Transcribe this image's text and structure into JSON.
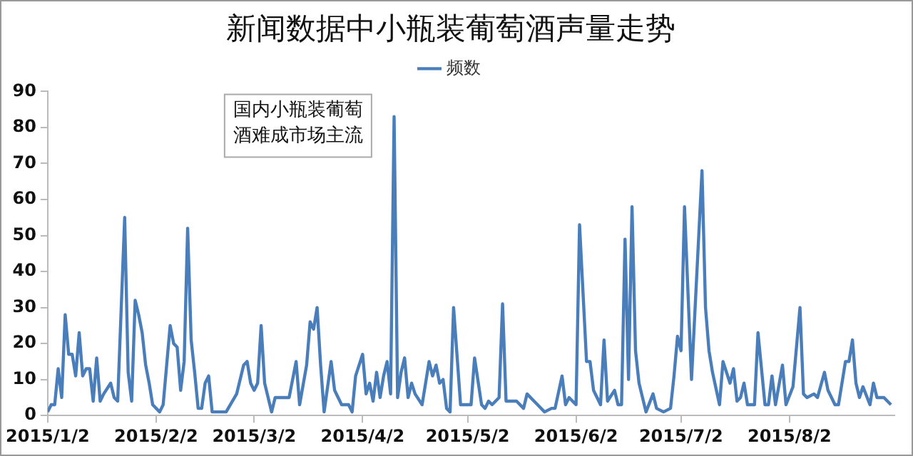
{
  "chart_data": {
    "type": "line",
    "title": "新闻数据中小瓶装葡萄酒声量走势",
    "annotations": [
      "国内小瓶装葡萄酒难成市场主流"
    ],
    "legend": "top",
    "grid": false,
    "marker": "none",
    "line_style": "solid",
    "xlim": [
      "2015-01-02",
      "2015-09-01"
    ],
    "xticks": [
      {
        "value": "2015-01-02",
        "label": "2015/1/2"
      },
      {
        "value": "2015-02-02",
        "label": "2015/2/2"
      },
      {
        "value": "2015-03-02",
        "label": "2015/3/2"
      },
      {
        "value": "2015-04-02",
        "label": "2015/4/2"
      },
      {
        "value": "2015-05-02",
        "label": "2015/5/2"
      },
      {
        "value": "2015-06-02",
        "label": "2015/6/2"
      },
      {
        "value": "2015-07-02",
        "label": "2015/7/2"
      },
      {
        "value": "2015-08-02",
        "label": "2015/8/2"
      }
    ],
    "ylim": [
      0,
      90
    ],
    "yticks": [
      0,
      10,
      20,
      30,
      40,
      50,
      60,
      70,
      80,
      90
    ],
    "series": [
      {
        "name": "频数",
        "color": "#4a7ebb",
        "x": [
          "2015-01-02",
          "2015-01-03",
          "2015-01-04",
          "2015-01-05",
          "2015-01-06",
          "2015-01-07",
          "2015-01-08",
          "2015-01-09",
          "2015-01-10",
          "2015-01-11",
          "2015-01-12",
          "2015-01-13",
          "2015-01-14",
          "2015-01-15",
          "2015-01-16",
          "2015-01-17",
          "2015-01-18",
          "2015-01-20",
          "2015-01-21",
          "2015-01-22",
          "2015-01-24",
          "2015-01-25",
          "2015-01-26",
          "2015-01-27",
          "2015-01-28",
          "2015-01-29",
          "2015-01-30",
          "2015-01-31",
          "2015-02-01",
          "2015-02-03",
          "2015-02-04",
          "2015-02-05",
          "2015-02-06",
          "2015-02-07",
          "2015-02-08",
          "2015-02-09",
          "2015-02-10",
          "2015-02-11",
          "2015-02-12",
          "2015-02-13",
          "2015-02-14",
          "2015-02-15",
          "2015-02-16",
          "2015-02-17",
          "2015-02-18",
          "2015-02-22",
          "2015-02-25",
          "2015-02-27",
          "2015-02-28",
          "2015-03-01",
          "2015-03-02",
          "2015-03-03",
          "2015-03-04",
          "2015-03-05",
          "2015-03-07",
          "2015-03-08",
          "2015-03-10",
          "2015-03-12",
          "2015-03-14",
          "2015-03-15",
          "2015-03-17",
          "2015-03-18",
          "2015-03-19",
          "2015-03-20",
          "2015-03-21",
          "2015-03-22",
          "2015-03-24",
          "2015-03-25",
          "2015-03-27",
          "2015-03-29",
          "2015-03-30",
          "2015-03-31",
          "2015-04-02",
          "2015-04-03",
          "2015-04-04",
          "2015-04-05",
          "2015-04-06",
          "2015-04-07",
          "2015-04-08",
          "2015-04-09",
          "2015-04-10",
          "2015-04-11",
          "2015-04-12",
          "2015-04-13",
          "2015-04-14",
          "2015-04-15",
          "2015-04-16",
          "2015-04-17",
          "2015-04-19",
          "2015-04-21",
          "2015-04-22",
          "2015-04-23",
          "2015-04-24",
          "2015-04-25",
          "2015-04-26",
          "2015-04-27",
          "2015-04-28",
          "2015-04-30",
          "2015-05-02",
          "2015-05-03",
          "2015-05-04",
          "2015-05-06",
          "2015-05-07",
          "2015-05-08",
          "2015-05-09",
          "2015-05-10",
          "2015-05-11",
          "2015-05-12",
          "2015-05-13",
          "2015-05-16",
          "2015-05-18",
          "2015-05-19",
          "2015-05-21",
          "2015-05-22",
          "2015-05-24",
          "2015-05-26",
          "2015-05-27",
          "2015-05-29",
          "2015-05-30",
          "2015-05-31",
          "2015-06-02",
          "2015-06-03",
          "2015-06-05",
          "2015-06-06",
          "2015-06-07",
          "2015-06-09",
          "2015-06-10",
          "2015-06-11",
          "2015-06-13",
          "2015-06-14",
          "2015-06-15",
          "2015-06-16",
          "2015-06-17",
          "2015-06-18",
          "2015-06-19",
          "2015-06-20",
          "2015-06-22",
          "2015-06-24",
          "2015-06-25",
          "2015-06-27",
          "2015-06-29",
          "2015-06-30",
          "2015-07-01",
          "2015-07-02",
          "2015-07-03",
          "2015-07-05",
          "2015-07-08",
          "2015-07-09",
          "2015-07-10",
          "2015-07-11",
          "2015-07-13",
          "2015-07-14",
          "2015-07-16",
          "2015-07-17",
          "2015-07-18",
          "2015-07-19",
          "2015-07-20",
          "2015-07-21",
          "2015-07-23",
          "2015-07-24",
          "2015-07-26",
          "2015-07-27",
          "2015-07-28",
          "2015-07-29",
          "2015-07-31",
          "2015-08-01",
          "2015-08-03",
          "2015-08-05",
          "2015-08-06",
          "2015-08-07",
          "2015-08-09",
          "2015-08-10",
          "2015-08-12",
          "2015-08-13",
          "2015-08-15",
          "2015-08-16",
          "2015-08-18",
          "2015-08-19",
          "2015-08-20",
          "2015-08-21",
          "2015-08-22",
          "2015-08-23",
          "2015-08-25",
          "2015-08-26",
          "2015-08-27",
          "2015-08-28",
          "2015-08-29",
          "2015-08-31"
        ],
        "values": [
          1,
          3,
          3,
          13,
          5,
          28,
          17,
          17,
          11,
          23,
          11,
          13,
          13,
          4,
          16,
          4,
          6,
          9,
          5,
          4,
          55,
          12,
          4,
          32,
          28,
          23,
          14,
          9,
          3,
          1,
          3,
          14,
          25,
          20,
          19,
          7,
          15,
          52,
          21,
          12,
          2,
          2,
          9,
          11,
          1,
          1,
          6,
          14,
          15,
          9,
          7,
          9,
          25,
          9,
          1,
          5,
          5,
          5,
          15,
          3,
          14,
          26,
          24,
          30,
          14,
          1,
          15,
          7,
          3,
          3,
          1,
          11,
          17,
          6,
          9,
          4,
          12,
          5,
          11,
          15,
          6,
          83,
          5,
          12,
          16,
          5,
          9,
          6,
          3,
          15,
          11,
          14,
          9,
          10,
          2,
          1,
          30,
          3,
          3,
          3,
          16,
          3,
          2,
          4,
          3,
          4,
          5,
          31,
          4,
          4,
          2,
          6,
          4,
          3,
          1,
          2,
          2,
          11,
          3,
          5,
          3,
          53,
          15,
          15,
          7,
          3,
          21,
          4,
          7,
          3,
          3,
          49,
          10,
          58,
          18,
          9,
          1,
          6,
          2,
          1,
          2,
          11,
          22,
          18,
          58,
          10,
          68,
          30,
          18,
          12,
          3,
          15,
          9,
          13,
          4,
          5,
          9,
          3,
          3,
          23,
          3,
          3,
          11,
          3,
          14,
          3,
          8,
          30,
          6,
          5,
          6,
          5,
          12,
          7,
          3,
          3,
          15,
          15,
          21,
          9,
          5,
          8,
          3,
          9,
          5,
          5,
          5,
          3
        ]
      }
    ]
  }
}
